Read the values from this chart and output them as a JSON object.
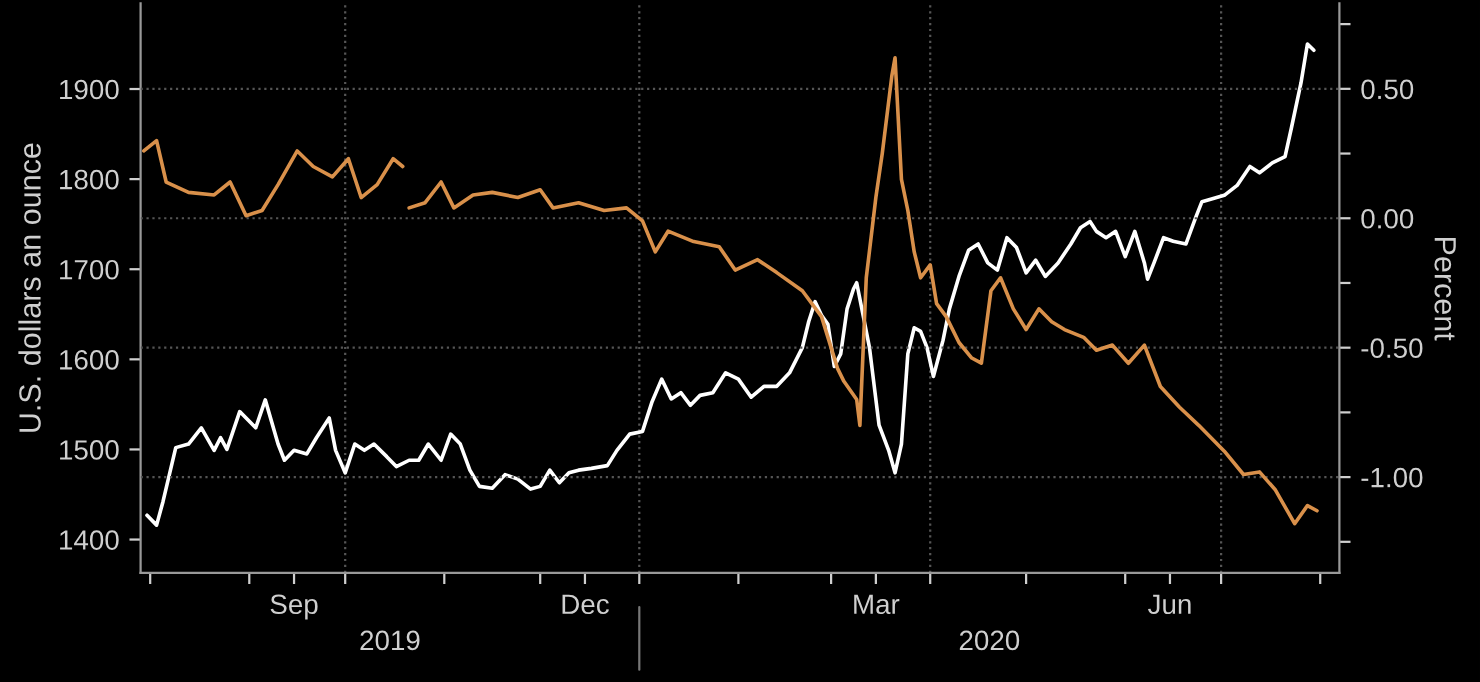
{
  "chart_data": {
    "type": "line",
    "ylabel": "U.S. dollars an ounce",
    "y2label": "Percent",
    "xlim": [
      "2019-07-29",
      "2020-08-07"
    ],
    "xticks": [
      {
        "value": "2019-08-01",
        "label": null
      },
      {
        "value": "2019-09-01",
        "label": null
      },
      {
        "value": "2019-09-15",
        "label": "Sep"
      },
      {
        "value": "2019-10-01",
        "label": null
      },
      {
        "value": "2019-11-01",
        "label": null
      },
      {
        "value": "2019-12-01",
        "label": null
      },
      {
        "value": "2019-12-15",
        "label": "Dec"
      },
      {
        "value": "2020-01-01",
        "label": null
      },
      {
        "value": "2020-02-01",
        "label": null
      },
      {
        "value": "2020-03-01",
        "label": null
      },
      {
        "value": "2020-03-15",
        "label": "Mar"
      },
      {
        "value": "2020-04-01",
        "label": null
      },
      {
        "value": "2020-05-01",
        "label": null
      },
      {
        "value": "2020-06-01",
        "label": null
      },
      {
        "value": "2020-06-15",
        "label": "Jun"
      },
      {
        "value": "2020-07-01",
        "label": null
      },
      {
        "value": "2020-08-01",
        "label": null
      }
    ],
    "ylim": [
      1363,
      1995
    ],
    "yticks": [
      1400,
      1500,
      1600,
      1700,
      1800,
      1900
    ],
    "y2lim": [
      -1.37,
      0.83
    ],
    "y2ticks": [
      {
        "value": 0.75,
        "label": null
      },
      {
        "value": 0.5,
        "label": "0.50"
      },
      {
        "value": 0.25,
        "label": null
      },
      {
        "value": 0,
        "label": "0.00"
      },
      {
        "value": -0.25,
        "label": null
      },
      {
        "value": -0.5,
        "label": "-0.50"
      },
      {
        "value": -0.75,
        "label": null
      },
      {
        "value": -1.0,
        "label": "-1.00"
      },
      {
        "value": -1.25,
        "label": null
      }
    ],
    "grid": "y",
    "legend": false,
    "marker": "none",
    "line_style": "solid",
    "ref_lines": [
      {
        "axis": "x",
        "value": "2019-10-01",
        "color": "#555555",
        "line_style": "dotted"
      },
      {
        "axis": "x",
        "value": "2020-01-01",
        "color": "#555555",
        "line_style": "dotted"
      },
      {
        "axis": "x",
        "value": "2020-04-01",
        "color": "#555555",
        "line_style": "dotted"
      },
      {
        "axis": "x",
        "value": "2020-07-01",
        "color": "#555555",
        "line_style": "dotted"
      }
    ],
    "annotations": [
      "2019",
      "2020"
    ],
    "series": [
      {
        "color": "#ffffff",
        "x": [
          "2019-07-31",
          "2019-08-03",
          "2019-08-05",
          "2019-08-09",
          "2019-08-13",
          "2019-08-17",
          "2019-08-21",
          "2019-08-23",
          "2019-08-25",
          "2019-08-29",
          "2019-09-03",
          "2019-09-06",
          "2019-09-10",
          "2019-09-12",
          "2019-09-15",
          "2019-09-19",
          "2019-09-22",
          "2019-09-26",
          "2019-09-28",
          "2019-10-01",
          "2019-10-04",
          "2019-10-07",
          "2019-10-10",
          "2019-10-14",
          "2019-10-17",
          "2019-10-21",
          "2019-10-24",
          "2019-10-27",
          "2019-10-31",
          "2019-11-03",
          "2019-11-06",
          "2019-11-09",
          "2019-11-12",
          "2019-11-16",
          "2019-11-20",
          "2019-11-24",
          "2019-11-28",
          "2019-12-01",
          "2019-12-04",
          "2019-12-07",
          "2019-12-10",
          "2019-12-13",
          "2019-12-17",
          "2019-12-22",
          "2019-12-25",
          "2019-12-29",
          "2020-01-02",
          "2020-01-05",
          "2020-01-08",
          "2020-01-11",
          "2020-01-14",
          "2020-01-17",
          "2020-01-20",
          "2020-01-24",
          "2020-01-28",
          "2020-02-01",
          "2020-02-05",
          "2020-02-09",
          "2020-02-13",
          "2020-02-17",
          "2020-02-21",
          "2020-02-23",
          "2020-02-25",
          "2020-02-27",
          "2020-02-29",
          "2020-03-02",
          "2020-03-04",
          "2020-03-06",
          "2020-03-08",
          "2020-03-09",
          "2020-03-11",
          "2020-03-13",
          "2020-03-16",
          "2020-03-19",
          "2020-03-21",
          "2020-03-23",
          "2020-03-25",
          "2020-03-27",
          "2020-03-29",
          "2020-03-31",
          "2020-04-02",
          "2020-04-05",
          "2020-04-07",
          "2020-04-10",
          "2020-04-13",
          "2020-04-16",
          "2020-04-19",
          "2020-04-22",
          "2020-04-25",
          "2020-04-28",
          "2020-05-01",
          "2020-05-04",
          "2020-05-07",
          "2020-05-11",
          "2020-05-15",
          "2020-05-18",
          "2020-05-21",
          "2020-05-23",
          "2020-05-26",
          "2020-05-29",
          "2020-06-01",
          "2020-06-04",
          "2020-06-07",
          "2020-06-08",
          "2020-06-10",
          "2020-06-13",
          "2020-06-16",
          "2020-06-20",
          "2020-06-23",
          "2020-06-25",
          "2020-06-28",
          "2020-07-02",
          "2020-07-06",
          "2020-07-10",
          "2020-07-13",
          "2020-07-17",
          "2020-07-21",
          "2020-07-23",
          "2020-07-26",
          "2020-07-28",
          "2020-07-30"
        ],
        "values": [
          1427,
          1416,
          1442,
          1502,
          1506,
          1524,
          1499,
          1513,
          1500,
          1542,
          1524,
          1555,
          1506,
          1488,
          1499,
          1495,
          1513,
          1535,
          1499,
          1474,
          1506,
          1499,
          1506,
          1492,
          1481,
          1488,
          1488,
          1506,
          1488,
          1517,
          1506,
          1477,
          1459,
          1457,
          1472,
          1467,
          1456,
          1459,
          1477,
          1463,
          1474,
          1477,
          1479,
          1482,
          1499,
          1517,
          1520,
          1553,
          1578,
          1556,
          1563,
          1549,
          1560,
          1563,
          1585,
          1578,
          1558,
          1570,
          1570,
          1585,
          1613,
          1642,
          1664,
          1649,
          1639,
          1592,
          1606,
          1656,
          1678,
          1685,
          1649,
          1613,
          1527,
          1499,
          1474,
          1506,
          1606,
          1635,
          1631,
          1613,
          1581,
          1621,
          1656,
          1692,
          1721,
          1728,
          1707,
          1699,
          1735,
          1724,
          1696,
          1710,
          1692,
          1707,
          1728,
          1746,
          1753,
          1742,
          1735,
          1742,
          1714,
          1742,
          1707,
          1689,
          1707,
          1735,
          1731,
          1728,
          1757,
          1775,
          1778,
          1782,
          1793,
          1814,
          1807,
          1818,
          1825,
          1857,
          1907,
          1950,
          1943
        ]
      },
      {
        "axis": "y2",
        "color": "#d9904a",
        "x": [
          "2019-07-30",
          "2019-08-03",
          "2019-08-06",
          "2019-08-13",
          "2019-08-21",
          "2019-08-26",
          "2019-08-31",
          "2019-09-05",
          "2019-09-10",
          "2019-09-16",
          "2019-09-21",
          "2019-09-27",
          "2019-10-02",
          "2019-10-06",
          "2019-10-11",
          "2019-10-16",
          "2019-10-19",
          "2019-10-20",
          "2019-10-21",
          "2019-10-26",
          "2019-10-31",
          "2019-11-04",
          "2019-11-10",
          "2019-11-16",
          "2019-11-24",
          "2019-12-01",
          "2019-12-05",
          "2019-12-13",
          "2019-12-21",
          "2019-12-28",
          "2020-01-02",
          "2020-01-06",
          "2020-01-10",
          "2020-01-18",
          "2020-01-26",
          "2020-01-31",
          "2020-02-07",
          "2020-02-13",
          "2020-02-21",
          "2020-02-27",
          "2020-03-03",
          "2020-03-05",
          "2020-03-09",
          "2020-03-10",
          "2020-03-12",
          "2020-03-15",
          "2020-03-17",
          "2020-03-20",
          "2020-03-21",
          "2020-03-23",
          "2020-03-25",
          "2020-03-27",
          "2020-03-29",
          "2020-04-01",
          "2020-04-03",
          "2020-04-06",
          "2020-04-10",
          "2020-04-14",
          "2020-04-17",
          "2020-04-20",
          "2020-04-23",
          "2020-04-27",
          "2020-05-01",
          "2020-05-05",
          "2020-05-09",
          "2020-05-13",
          "2020-05-19",
          "2020-05-23",
          "2020-05-28",
          "2020-06-02",
          "2020-06-07",
          "2020-06-12",
          "2020-06-18",
          "2020-06-24",
          "2020-07-02",
          "2020-07-08",
          "2020-07-13",
          "2020-07-18",
          "2020-07-24",
          "2020-07-28",
          "2020-07-31"
        ],
        "values": [
          0.26,
          0.3,
          0.14,
          0.1,
          0.09,
          0.14,
          0.01,
          0.03,
          0.13,
          0.26,
          0.2,
          0.16,
          0.23,
          0.08,
          0.13,
          0.23,
          0.2,
          null,
          0.04,
          0.06,
          0.14,
          0.04,
          0.09,
          0.1,
          0.08,
          0.11,
          0.04,
          0.06,
          0.03,
          0.04,
          -0.01,
          -0.13,
          -0.05,
          -0.09,
          -0.11,
          -0.2,
          -0.16,
          -0.21,
          -0.28,
          -0.38,
          -0.58,
          -0.63,
          -0.7,
          -0.8,
          -0.23,
          0.08,
          0.25,
          0.55,
          0.62,
          0.15,
          0.03,
          -0.13,
          -0.23,
          -0.18,
          -0.33,
          -0.38,
          -0.48,
          -0.54,
          -0.56,
          -0.28,
          -0.23,
          -0.35,
          -0.43,
          -0.35,
          -0.4,
          -0.43,
          -0.46,
          -0.51,
          -0.49,
          -0.56,
          -0.49,
          -0.65,
          -0.73,
          -0.8,
          -0.9,
          -0.99,
          -0.98,
          -1.05,
          -1.18,
          -1.11,
          -1.13
        ]
      }
    ]
  }
}
